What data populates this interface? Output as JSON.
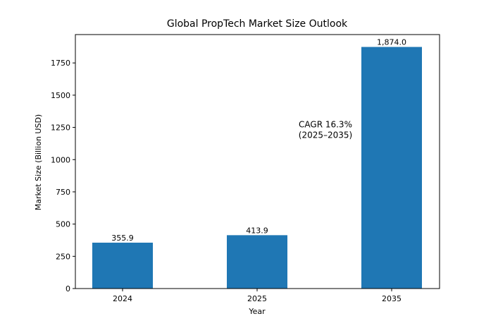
{
  "chart_data": {
    "type": "bar",
    "title": "Global PropTech Market Size Outlook",
    "xlabel": "Year",
    "ylabel": "Market Size (Billion USD)",
    "categories": [
      "2024",
      "2025",
      "2035"
    ],
    "values": [
      355.9,
      413.9,
      1874.0
    ],
    "data_labels": [
      "355.9",
      "413.9",
      "1,874.0"
    ],
    "ylim": [
      0,
      1970
    ],
    "yticks": [
      0,
      250,
      500,
      750,
      1000,
      1250,
      1500,
      1750
    ],
    "bar_color": "#1f77b4",
    "grid": false,
    "annotation": {
      "lines": [
        "CAGR 16.3%",
        "(2025–2035)"
      ],
      "x_category": "2035",
      "y": 1185
    }
  }
}
